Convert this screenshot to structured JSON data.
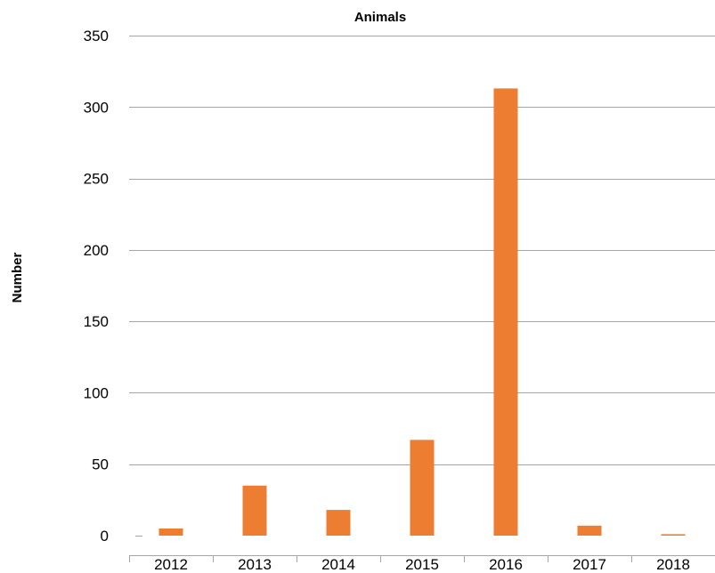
{
  "chart_data": {
    "type": "bar",
    "title": "Animals",
    "xlabel": "",
    "ylabel": "Number",
    "categories": [
      "2012",
      "2013",
      "2014",
      "2015",
      "2016",
      "2017",
      "2018"
    ],
    "series": [
      {
        "values": [
          5,
          35,
          18,
          67,
          313,
          7,
          1
        ]
      }
    ],
    "ylim": [
      0,
      350
    ],
    "yticks": [
      0,
      50,
      100,
      150,
      200,
      250,
      300,
      350
    ],
    "grid": true,
    "legend": "none",
    "colors": {
      "bar": "#ED7D31",
      "grid": "#A6A6A6",
      "text": "#000000"
    }
  }
}
